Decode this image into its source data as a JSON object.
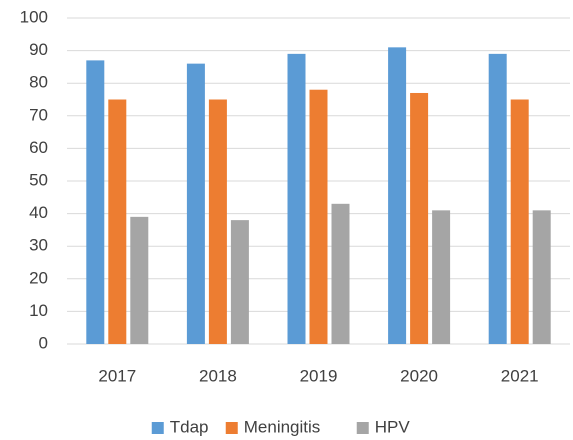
{
  "chart_data": {
    "type": "bar",
    "categories": [
      "2017",
      "2018",
      "2019",
      "2020",
      "2021"
    ],
    "series": [
      {
        "name": "Tdap",
        "color": "#5b9bd5",
        "values": [
          87,
          86,
          89,
          91,
          89
        ]
      },
      {
        "name": "Meningitis",
        "color": "#ed7d31",
        "values": [
          75,
          75,
          78,
          77,
          75
        ]
      },
      {
        "name": "HPV",
        "color": "#a5a5a5",
        "values": [
          39,
          38,
          43,
          41,
          41
        ]
      }
    ],
    "ylim": [
      0,
      100
    ],
    "yticks": [
      0,
      10,
      20,
      30,
      40,
      50,
      60,
      70,
      80,
      90,
      100
    ],
    "grid": true,
    "legend": "bottom"
  }
}
